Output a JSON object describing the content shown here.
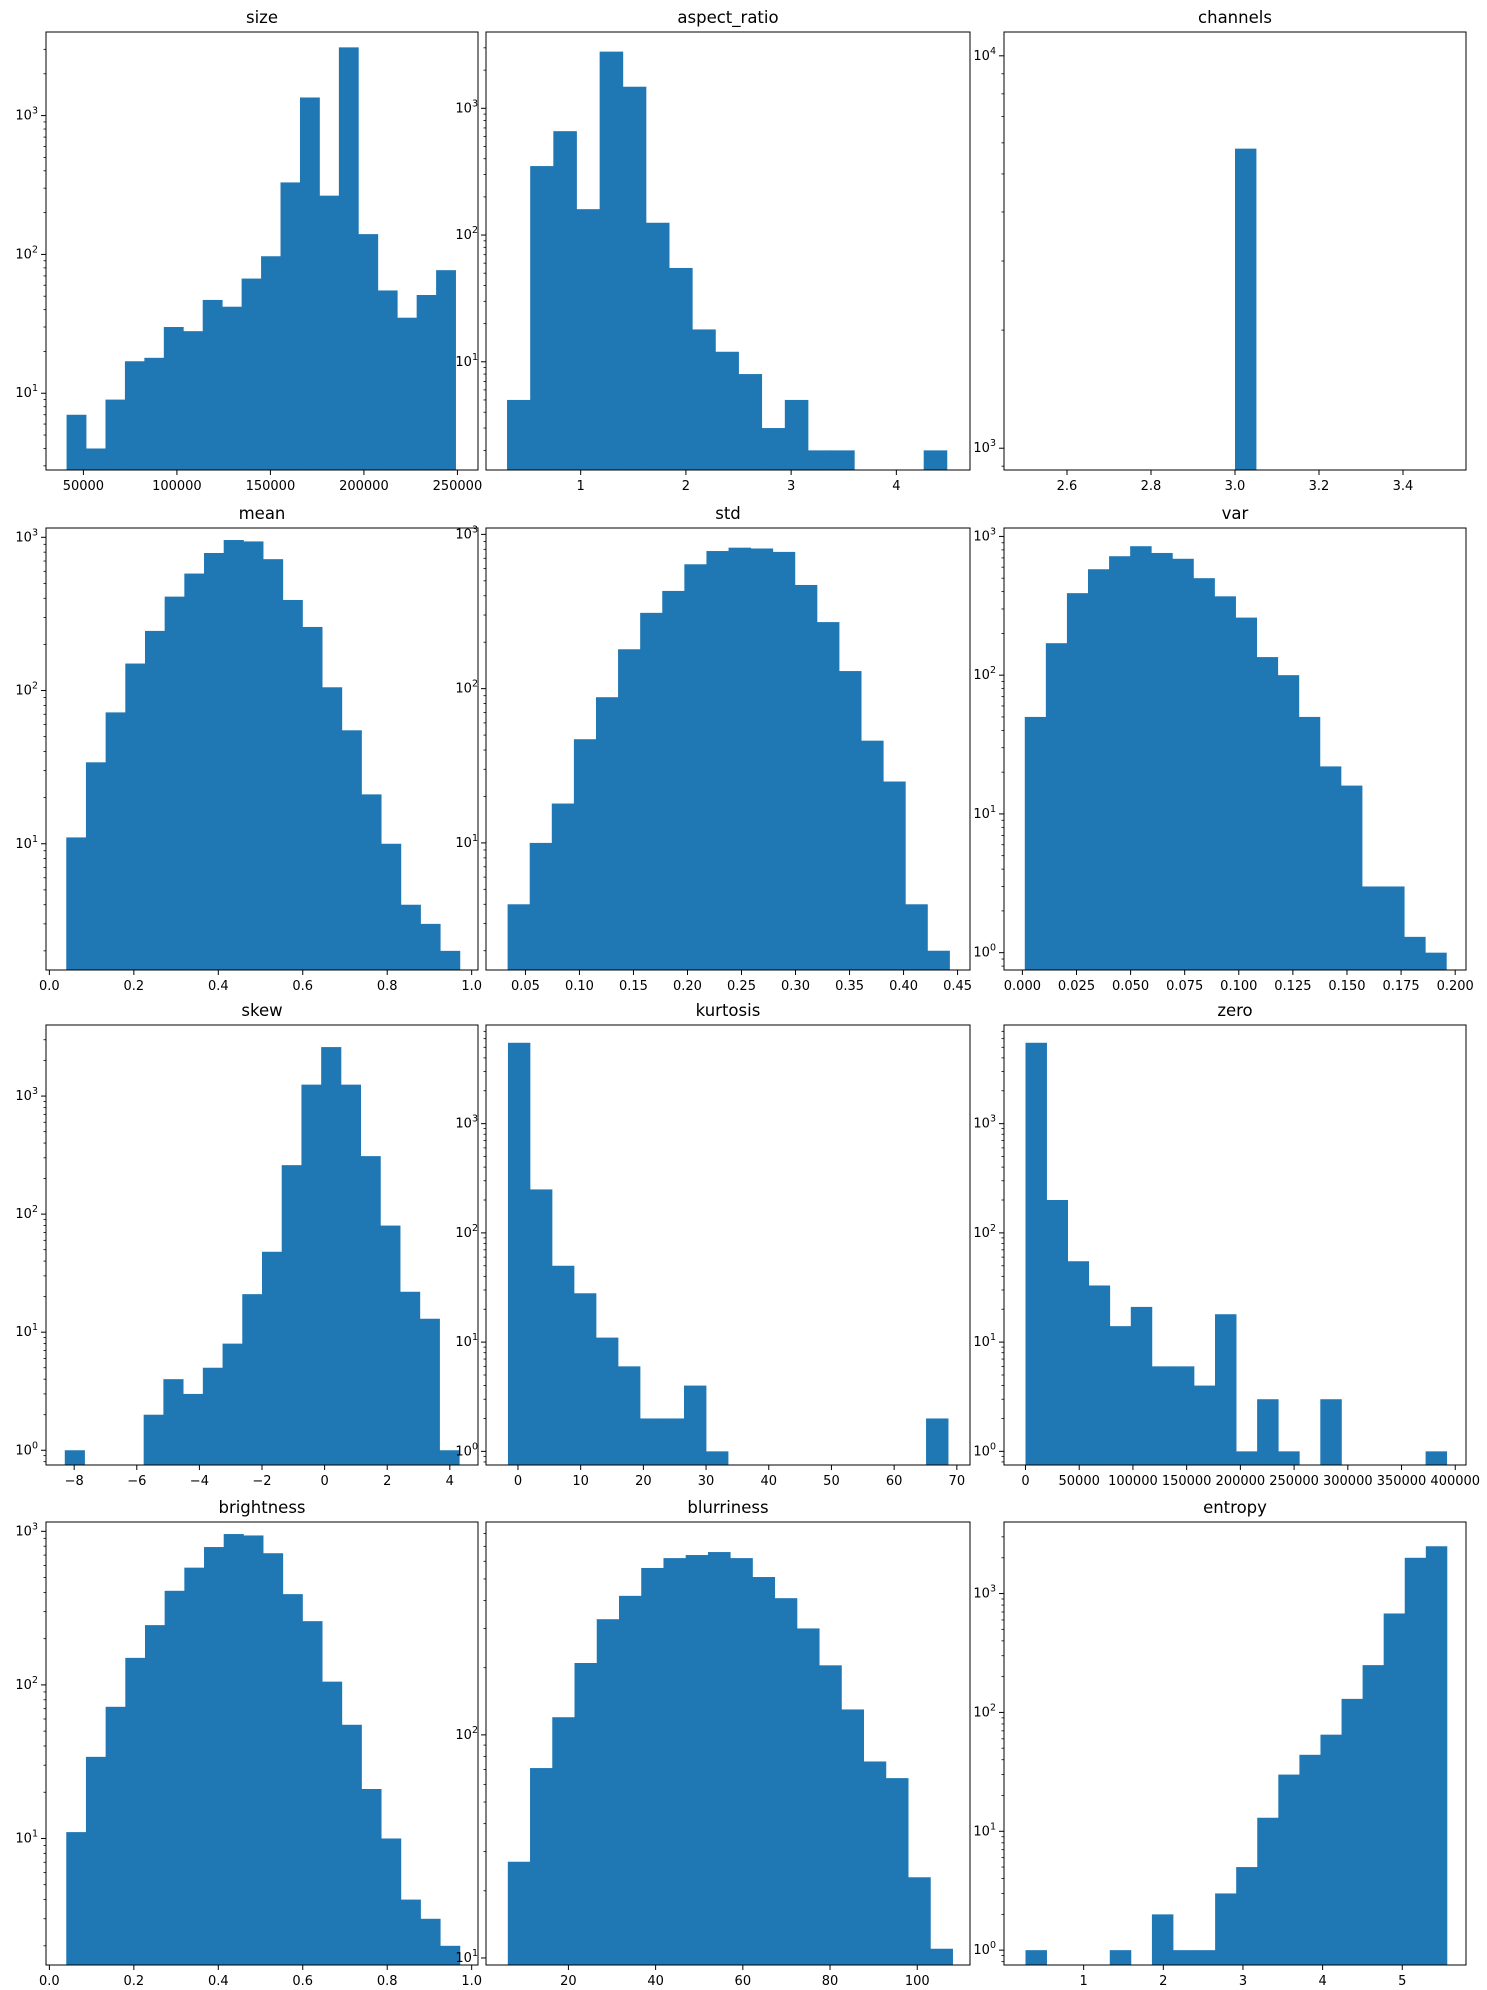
{
  "style": {
    "bar_color": "#1f77b4",
    "axis_color": "#000000",
    "background": "#ffffff"
  },
  "chart_data": [
    {
      "type": "bar",
      "title": "size",
      "yscale": "log",
      "xlim": [
        30000,
        261000
      ],
      "ylim": [
        2.8,
        4000
      ],
      "x_ticks": [
        50000,
        100000,
        150000,
        200000,
        250000
      ],
      "x_tick_labels": [
        "50000",
        "100000",
        "150000",
        "200000",
        "250000"
      ],
      "y_ticks": [
        10,
        100,
        1000
      ],
      "y_tick_labels": [
        "10^1",
        "10^2",
        "10^3"
      ],
      "bin_edges": [
        41000,
        51400,
        61800,
        72200,
        82600,
        93000,
        103400,
        113800,
        124200,
        134600,
        145000,
        155400,
        165800,
        176200,
        186600,
        197000,
        207400,
        217800,
        228200,
        238600,
        249000
      ],
      "counts": [
        7,
        4,
        9,
        17,
        18,
        30,
        28,
        47,
        42,
        67,
        97,
        330,
        1350,
        265,
        3100,
        140,
        55,
        35,
        51,
        77
      ]
    },
    {
      "type": "bar",
      "title": "aspect_ratio",
      "yscale": "log",
      "xlim": [
        0.1,
        4.7
      ],
      "ylim": [
        1.4,
        4000
      ],
      "x_ticks": [
        1,
        2,
        3,
        4
      ],
      "x_tick_labels": [
        "1",
        "2",
        "3",
        "4"
      ],
      "y_ticks": [
        10,
        100,
        1000
      ],
      "y_tick_labels": [
        "10^1",
        "10^2",
        "10^3"
      ],
      "bin_edges": [
        0.3,
        0.52,
        0.74,
        0.96,
        1.18,
        1.4,
        1.62,
        1.84,
        2.06,
        2.28,
        2.5,
        2.72,
        2.94,
        3.16,
        3.38,
        3.6,
        3.82,
        4.04,
        4.26,
        4.48,
        4.7
      ],
      "counts": [
        5,
        350,
        660,
        160,
        2800,
        1480,
        125,
        55,
        18,
        12,
        8,
        3,
        5,
        2,
        2,
        0,
        0,
        0,
        2,
        0
      ]
    },
    {
      "type": "bar",
      "title": "channels",
      "yscale": "log",
      "xlim": [
        2.45,
        3.55
      ],
      "ylim": [
        880,
        11500
      ],
      "x_ticks": [
        2.6,
        2.8,
        3.0,
        3.2,
        3.4
      ],
      "x_tick_labels": [
        "2.6",
        "2.8",
        "3.0",
        "3.2",
        "3.4"
      ],
      "y_ticks": [
        1000,
        10000
      ],
      "y_tick_labels": [
        "10^3",
        "10^4"
      ],
      "bin_edges": [
        2.5,
        2.55,
        2.6,
        2.65,
        2.7,
        2.75,
        2.8,
        2.85,
        2.9,
        2.95,
        3.0,
        3.05,
        3.1,
        3.15,
        3.2,
        3.25,
        3.3,
        3.35,
        3.4,
        3.45,
        3.5
      ],
      "counts": [
        0,
        0,
        0,
        0,
        0,
        0,
        0,
        0,
        0,
        0,
        5800,
        0,
        0,
        0,
        0,
        0,
        0,
        0,
        0,
        0
      ]
    },
    {
      "type": "bar",
      "title": "mean",
      "yscale": "log",
      "xlim": [
        -0.008,
        1.015
      ],
      "ylim": [
        1.5,
        1150
      ],
      "x_ticks": [
        0.0,
        0.2,
        0.4,
        0.6,
        0.8,
        1.0
      ],
      "x_tick_labels": [
        "0.0",
        "0.2",
        "0.4",
        "0.6",
        "0.8",
        "1.0"
      ],
      "y_ticks": [
        10,
        100,
        1000
      ],
      "y_tick_labels": [
        "10^1",
        "10^2",
        "10^3"
      ],
      "bin_edges": [
        0.04,
        0.0866,
        0.1332,
        0.1798,
        0.2264,
        0.273,
        0.3196,
        0.3662,
        0.4128,
        0.4594,
        0.506,
        0.5526,
        0.5992,
        0.6458,
        0.6924,
        0.739,
        0.7856,
        0.8322,
        0.8788,
        0.9254,
        0.972
      ],
      "counts": [
        11,
        34,
        72,
        150,
        245,
        410,
        580,
        790,
        960,
        940,
        720,
        390,
        260,
        105,
        55,
        21,
        10,
        4,
        3,
        2
      ]
    },
    {
      "type": "bar",
      "title": "std",
      "yscale": "log",
      "xlim": [
        0.0135,
        0.4615
      ],
      "ylim": [
        1.5,
        1100
      ],
      "x_ticks": [
        0.05,
        0.1,
        0.15,
        0.2,
        0.25,
        0.3,
        0.35,
        0.4,
        0.45
      ],
      "x_tick_labels": [
        "0.05",
        "0.10",
        "0.15",
        "0.20",
        "0.25",
        "0.30",
        "0.35",
        "0.40",
        "0.45"
      ],
      "y_ticks": [
        10,
        100,
        1000
      ],
      "y_tick_labels": [
        "10^1",
        "10^2",
        "10^3"
      ],
      "bin_edges": [
        0.0335,
        0.05395,
        0.0744,
        0.09485,
        0.1153,
        0.13575,
        0.1562,
        0.17665,
        0.1971,
        0.21755,
        0.238,
        0.25845,
        0.2789,
        0.29935,
        0.3198,
        0.34025,
        0.3607,
        0.38115,
        0.4016,
        0.42205,
        0.4425
      ],
      "counts": [
        4,
        10,
        18,
        47,
        88,
        180,
        310,
        430,
        640,
        780,
        820,
        810,
        770,
        470,
        270,
        130,
        46,
        25,
        4,
        2
      ]
    },
    {
      "type": "bar",
      "title": "var",
      "yscale": "log",
      "xlim": [
        -0.0085,
        0.205
      ],
      "ylim": [
        0.75,
        1150
      ],
      "x_ticks": [
        0.0,
        0.025,
        0.05,
        0.075,
        0.1,
        0.125,
        0.15,
        0.175,
        0.2
      ],
      "x_tick_labels": [
        "0.000",
        "0.025",
        "0.050",
        "0.075",
        "0.100",
        "0.125",
        "0.150",
        "0.175",
        "0.200"
      ],
      "y_ticks": [
        1,
        10,
        100,
        1000
      ],
      "y_tick_labels": [
        "10^0",
        "10^1",
        "10^2",
        "10^3"
      ],
      "bin_edges": [
        0.0011,
        0.01084,
        0.02058,
        0.03032,
        0.04006,
        0.0498,
        0.05954,
        0.06928,
        0.07902,
        0.08876,
        0.0985,
        0.10824,
        0.11798,
        0.12772,
        0.13746,
        0.1472,
        0.15694,
        0.16668,
        0.17642,
        0.18616,
        0.1959
      ],
      "counts": [
        50,
        170,
        390,
        580,
        720,
        850,
        760,
        690,
        500,
        370,
        260,
        135,
        100,
        50,
        22,
        16,
        3,
        3,
        1.3,
        1
      ]
    },
    {
      "type": "bar",
      "title": "skew",
      "yscale": "log",
      "xlim": [
        -8.9,
        4.9
      ],
      "ylim": [
        0.75,
        4000
      ],
      "x_ticks": [
        -8,
        -6,
        -4,
        -2,
        0,
        2,
        4
      ],
      "x_tick_labels": [
        "−8",
        "−6",
        "−4",
        "−2",
        "0",
        "2",
        "4"
      ],
      "y_ticks": [
        1,
        10,
        100,
        1000
      ],
      "y_tick_labels": [
        "10^0",
        "10^1",
        "10^2",
        "10^3"
      ],
      "bin_edges": [
        -8.3,
        -7.67,
        -7.04,
        -6.41,
        -5.78,
        -5.15,
        -4.52,
        -3.89,
        -3.26,
        -2.63,
        -2.0,
        -1.37,
        -0.74,
        -0.11,
        0.52,
        1.15,
        1.78,
        2.41,
        3.04,
        3.67,
        4.3
      ],
      "counts": [
        1,
        0,
        0,
        0,
        2,
        4,
        3,
        5,
        8,
        21,
        48,
        260,
        1250,
        2600,
        1250,
        310,
        80,
        22,
        13,
        1
      ]
    },
    {
      "type": "bar",
      "title": "kurtosis",
      "yscale": "log",
      "xlim": [
        -5.1,
        72.1
      ],
      "ylim": [
        0.75,
        8000
      ],
      "x_ticks": [
        0,
        10,
        20,
        30,
        40,
        50,
        60,
        70
      ],
      "x_tick_labels": [
        "0",
        "10",
        "20",
        "30",
        "40",
        "50",
        "60",
        "70"
      ],
      "y_ticks": [
        1,
        10,
        100,
        1000
      ],
      "y_tick_labels": [
        "10^0",
        "10^1",
        "10^2",
        "10^3"
      ],
      "bin_edges": [
        -1.6,
        1.91,
        5.42,
        8.93,
        12.44,
        15.95,
        19.46,
        22.97,
        26.48,
        29.99,
        33.5,
        37.01,
        40.52,
        44.03,
        47.54,
        51.05,
        54.56,
        58.07,
        61.58,
        65.09,
        68.6
      ],
      "counts": [
        5500,
        250,
        50,
        28,
        11,
        6,
        2,
        2,
        4,
        1,
        0,
        0,
        0,
        0,
        0,
        0,
        0,
        0,
        0,
        2
      ]
    },
    {
      "type": "bar",
      "title": "zero",
      "yscale": "log",
      "xlim": [
        -20000,
        410000
      ],
      "ylim": [
        0.75,
        8000
      ],
      "x_ticks": [
        0,
        50000,
        100000,
        150000,
        200000,
        250000,
        300000,
        350000,
        400000
      ],
      "x_tick_labels": [
        "0",
        "50000",
        "100000",
        "150000",
        "200000",
        "250000",
        "300000",
        "350000",
        "400000"
      ],
      "y_ticks": [
        1,
        10,
        100,
        1000
      ],
      "y_tick_labels": [
        "10^0",
        "10^1",
        "10^2",
        "10^3"
      ],
      "bin_edges": [
        0,
        19600,
        39200,
        58800,
        78400,
        98000,
        117600,
        137200,
        156800,
        176400,
        196000,
        215600,
        235200,
        254800,
        274400,
        294000,
        313600,
        333200,
        352800,
        372400,
        392000
      ],
      "counts": [
        5500,
        200,
        55,
        33,
        14,
        21,
        6,
        6,
        4,
        18,
        1,
        3,
        1,
        0,
        3,
        0,
        0,
        0,
        0,
        1
      ]
    },
    {
      "type": "bar",
      "title": "brightness",
      "yscale": "log",
      "xlim": [
        -0.008,
        1.015
      ],
      "ylim": [
        1.5,
        1150
      ],
      "x_ticks": [
        0.0,
        0.2,
        0.4,
        0.6,
        0.8,
        1.0
      ],
      "x_tick_labels": [
        "0.0",
        "0.2",
        "0.4",
        "0.6",
        "0.8",
        "1.0"
      ],
      "y_ticks": [
        10,
        100,
        1000
      ],
      "y_tick_labels": [
        "10^1",
        "10^2",
        "10^3"
      ],
      "bin_edges": [
        0.04,
        0.0866,
        0.1332,
        0.1798,
        0.2264,
        0.273,
        0.3196,
        0.3662,
        0.4128,
        0.4594,
        0.506,
        0.5526,
        0.5992,
        0.6458,
        0.6924,
        0.739,
        0.7856,
        0.8322,
        0.8788,
        0.9254,
        0.972
      ],
      "counts": [
        11,
        34,
        72,
        150,
        245,
        410,
        580,
        790,
        960,
        940,
        720,
        390,
        260,
        105,
        55,
        21,
        10,
        4,
        3,
        2
      ]
    },
    {
      "type": "bar",
      "title": "blurriness",
      "yscale": "log",
      "xlim": [
        1.1,
        112.1
      ],
      "ylim": [
        9.3,
        900
      ],
      "x_ticks": [
        20,
        40,
        60,
        80,
        100
      ],
      "x_tick_labels": [
        "20",
        "40",
        "60",
        "80",
        "100"
      ],
      "y_ticks": [
        10,
        100
      ],
      "y_tick_labels": [
        "10^1",
        "10^2"
      ],
      "bin_edges": [
        6.1,
        11.2,
        16.3,
        21.4,
        26.5,
        31.6,
        36.7,
        41.8,
        46.9,
        52.0,
        57.1,
        62.2,
        67.3,
        72.4,
        77.5,
        82.6,
        87.7,
        92.8,
        97.9,
        103.0,
        108.1
      ],
      "counts": [
        27,
        71,
        120,
        210,
        330,
        420,
        560,
        620,
        640,
        660,
        620,
        510,
        410,
        300,
        205,
        130,
        76,
        64,
        23,
        11
      ]
    },
    {
      "type": "bar",
      "title": "entropy",
      "yscale": "log",
      "xlim": [
        0.0,
        5.8
      ],
      "ylim": [
        0.75,
        4000
      ],
      "x_ticks": [
        1,
        2,
        3,
        4,
        5
      ],
      "x_tick_labels": [
        "1",
        "2",
        "3",
        "4",
        "5"
      ],
      "y_ticks": [
        1,
        10,
        100,
        1000
      ],
      "y_tick_labels": [
        "10^0",
        "10^1",
        "10^2",
        "10^3"
      ],
      "bin_edges": [
        0.27,
        0.5345,
        0.799,
        1.0635,
        1.328,
        1.5925,
        1.857,
        2.1215,
        2.386,
        2.6505,
        2.915,
        3.1795,
        3.444,
        3.7085,
        3.973,
        4.2375,
        4.502,
        4.7665,
        5.031,
        5.2955,
        5.56
      ],
      "counts": [
        1,
        0,
        0,
        0,
        1,
        0,
        2,
        1,
        1,
        3,
        5,
        13,
        30,
        44,
        65,
        130,
        250,
        680,
        2000,
        2500
      ]
    }
  ]
}
